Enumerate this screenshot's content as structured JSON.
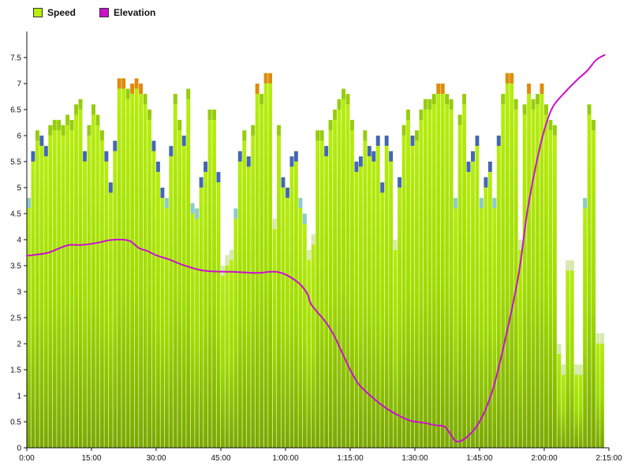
{
  "legend": {
    "position": "top-left",
    "items": [
      {
        "label": "Speed",
        "color": "#b8ee10"
      },
      {
        "label": "Elevation",
        "color": "#cc10cc"
      }
    ]
  },
  "chart_data": {
    "type": "bar",
    "title": "",
    "xlabel": "",
    "ylabel": "",
    "xlim": [
      "0:00",
      "2:15:00"
    ],
    "ylim": [
      0,
      8
    ],
    "x_ticks": [
      "0:00",
      "15:00",
      "30:00",
      "45:00",
      "1:00:00",
      "1:15:00",
      "1:30:00",
      "1:45:00",
      "2:00:00",
      "2:15:00"
    ],
    "y_ticks": [
      "0",
      "0.5",
      "1",
      "1.5",
      "2",
      "2.5",
      "3",
      "3.5",
      "4",
      "4.5",
      "5",
      "5.5",
      "6",
      "6.5",
      "7",
      "7.5"
    ],
    "grid": false,
    "series": [
      {
        "name": "Speed",
        "color": "#9fdc00",
        "x_start_seconds": 0,
        "x_step_seconds": 60,
        "values": [
          4.8,
          5.7,
          6.1,
          6.0,
          5.8,
          6.2,
          6.3,
          6.3,
          6.2,
          6.4,
          6.3,
          6.6,
          6.7,
          5.7,
          6.2,
          6.6,
          6.4,
          6.1,
          5.7,
          5.1,
          5.9,
          7.1,
          7.1,
          6.9,
          7.0,
          7.1,
          7.0,
          6.8,
          6.5,
          5.9,
          5.5,
          5.0,
          4.8,
          5.8,
          6.8,
          6.3,
          6.0,
          6.9,
          4.7,
          4.6,
          5.2,
          5.5,
          6.5,
          6.5,
          5.3,
          3.5,
          3.7,
          3.8,
          4.6,
          5.7,
          6.1,
          5.6,
          6.2,
          7.0,
          6.8,
          7.2,
          7.2,
          4.4,
          6.2,
          5.2,
          5.0,
          5.6,
          5.7,
          4.8,
          4.5,
          3.8,
          4.1,
          6.1,
          6.1,
          5.8,
          6.3,
          6.5,
          6.7,
          6.9,
          6.8,
          6.3,
          5.5,
          5.6,
          6.1,
          5.8,
          5.7,
          6.0,
          5.1,
          6.0,
          5.7,
          4.0,
          5.2,
          6.2,
          6.5,
          6.0,
          6.1,
          6.5,
          6.7,
          6.7,
          6.8,
          7.0,
          7.0,
          6.8,
          6.7,
          4.8,
          6.4,
          6.8,
          5.5,
          5.7,
          6.0,
          4.8,
          5.2,
          5.5,
          4.8,
          6.0,
          6.8,
          7.2,
          7.2,
          6.7,
          4.0,
          6.6,
          7.0,
          6.7,
          6.8,
          7.0,
          6.6,
          6.3,
          6.2,
          2.0,
          1.6,
          3.6,
          3.6,
          1.6,
          1.6,
          4.8,
          6.6,
          6.3,
          2.2,
          2.2
        ]
      },
      {
        "name": "Elevation",
        "color": "#cc10cc",
        "points": [
          {
            "x": "0:00",
            "y": 3.69
          },
          {
            "x": "2:00",
            "y": 3.71
          },
          {
            "x": "5:00",
            "y": 3.75
          },
          {
            "x": "8:00",
            "y": 3.85
          },
          {
            "x": "10:00",
            "y": 3.9
          },
          {
            "x": "13:00",
            "y": 3.9
          },
          {
            "x": "17:00",
            "y": 3.95
          },
          {
            "x": "19:00",
            "y": 3.99
          },
          {
            "x": "22:00",
            "y": 4.0
          },
          {
            "x": "24:00",
            "y": 3.97
          },
          {
            "x": "26:00",
            "y": 3.84
          },
          {
            "x": "28:00",
            "y": 3.78
          },
          {
            "x": "30:00",
            "y": 3.7
          },
          {
            "x": "33:00",
            "y": 3.62
          },
          {
            "x": "36:00",
            "y": 3.52
          },
          {
            "x": "40:00",
            "y": 3.42
          },
          {
            "x": "43:00",
            "y": 3.39
          },
          {
            "x": "48:00",
            "y": 3.38
          },
          {
            "x": "53:00",
            "y": 3.36
          },
          {
            "x": "55:00",
            "y": 3.37
          },
          {
            "x": "56:00",
            "y": 3.38
          },
          {
            "x": "58:00",
            "y": 3.38
          },
          {
            "x": "1:00:00",
            "y": 3.33
          },
          {
            "x": "1:03:00",
            "y": 3.17
          },
          {
            "x": "1:05:00",
            "y": 2.97
          },
          {
            "x": "1:06:00",
            "y": 2.75
          },
          {
            "x": "1:09:00",
            "y": 2.45
          },
          {
            "x": "1:11:00",
            "y": 2.2
          },
          {
            "x": "1:13:00",
            "y": 1.85
          },
          {
            "x": "1:15:00",
            "y": 1.5
          },
          {
            "x": "1:17:00",
            "y": 1.22
          },
          {
            "x": "1:20:00",
            "y": 0.98
          },
          {
            "x": "1:23:00",
            "y": 0.78
          },
          {
            "x": "1:26:00",
            "y": 0.63
          },
          {
            "x": "1:29:00",
            "y": 0.52
          },
          {
            "x": "1:32:00",
            "y": 0.48
          },
          {
            "x": "1:35:00",
            "y": 0.43
          },
          {
            "x": "1:37:00",
            "y": 0.4
          },
          {
            "x": "1:39:00",
            "y": 0.17
          },
          {
            "x": "1:40:00",
            "y": 0.12
          },
          {
            "x": "1:42:00",
            "y": 0.2
          },
          {
            "x": "1:45:00",
            "y": 0.5
          },
          {
            "x": "1:48:00",
            "y": 1.1
          },
          {
            "x": "1:51:00",
            "y": 2.1
          },
          {
            "x": "1:54:00",
            "y": 3.3
          },
          {
            "x": "1:56:00",
            "y": 4.5
          },
          {
            "x": "1:58:00",
            "y": 5.4
          },
          {
            "x": "2:00:00",
            "y": 6.1
          },
          {
            "x": "2:02:00",
            "y": 6.55
          },
          {
            "x": "2:05:00",
            "y": 6.85
          },
          {
            "x": "2:08:00",
            "y": 7.1
          },
          {
            "x": "2:10:00",
            "y": 7.25
          },
          {
            "x": "2:12:00",
            "y": 7.45
          },
          {
            "x": "2:14:00",
            "y": 7.55
          }
        ]
      }
    ]
  }
}
